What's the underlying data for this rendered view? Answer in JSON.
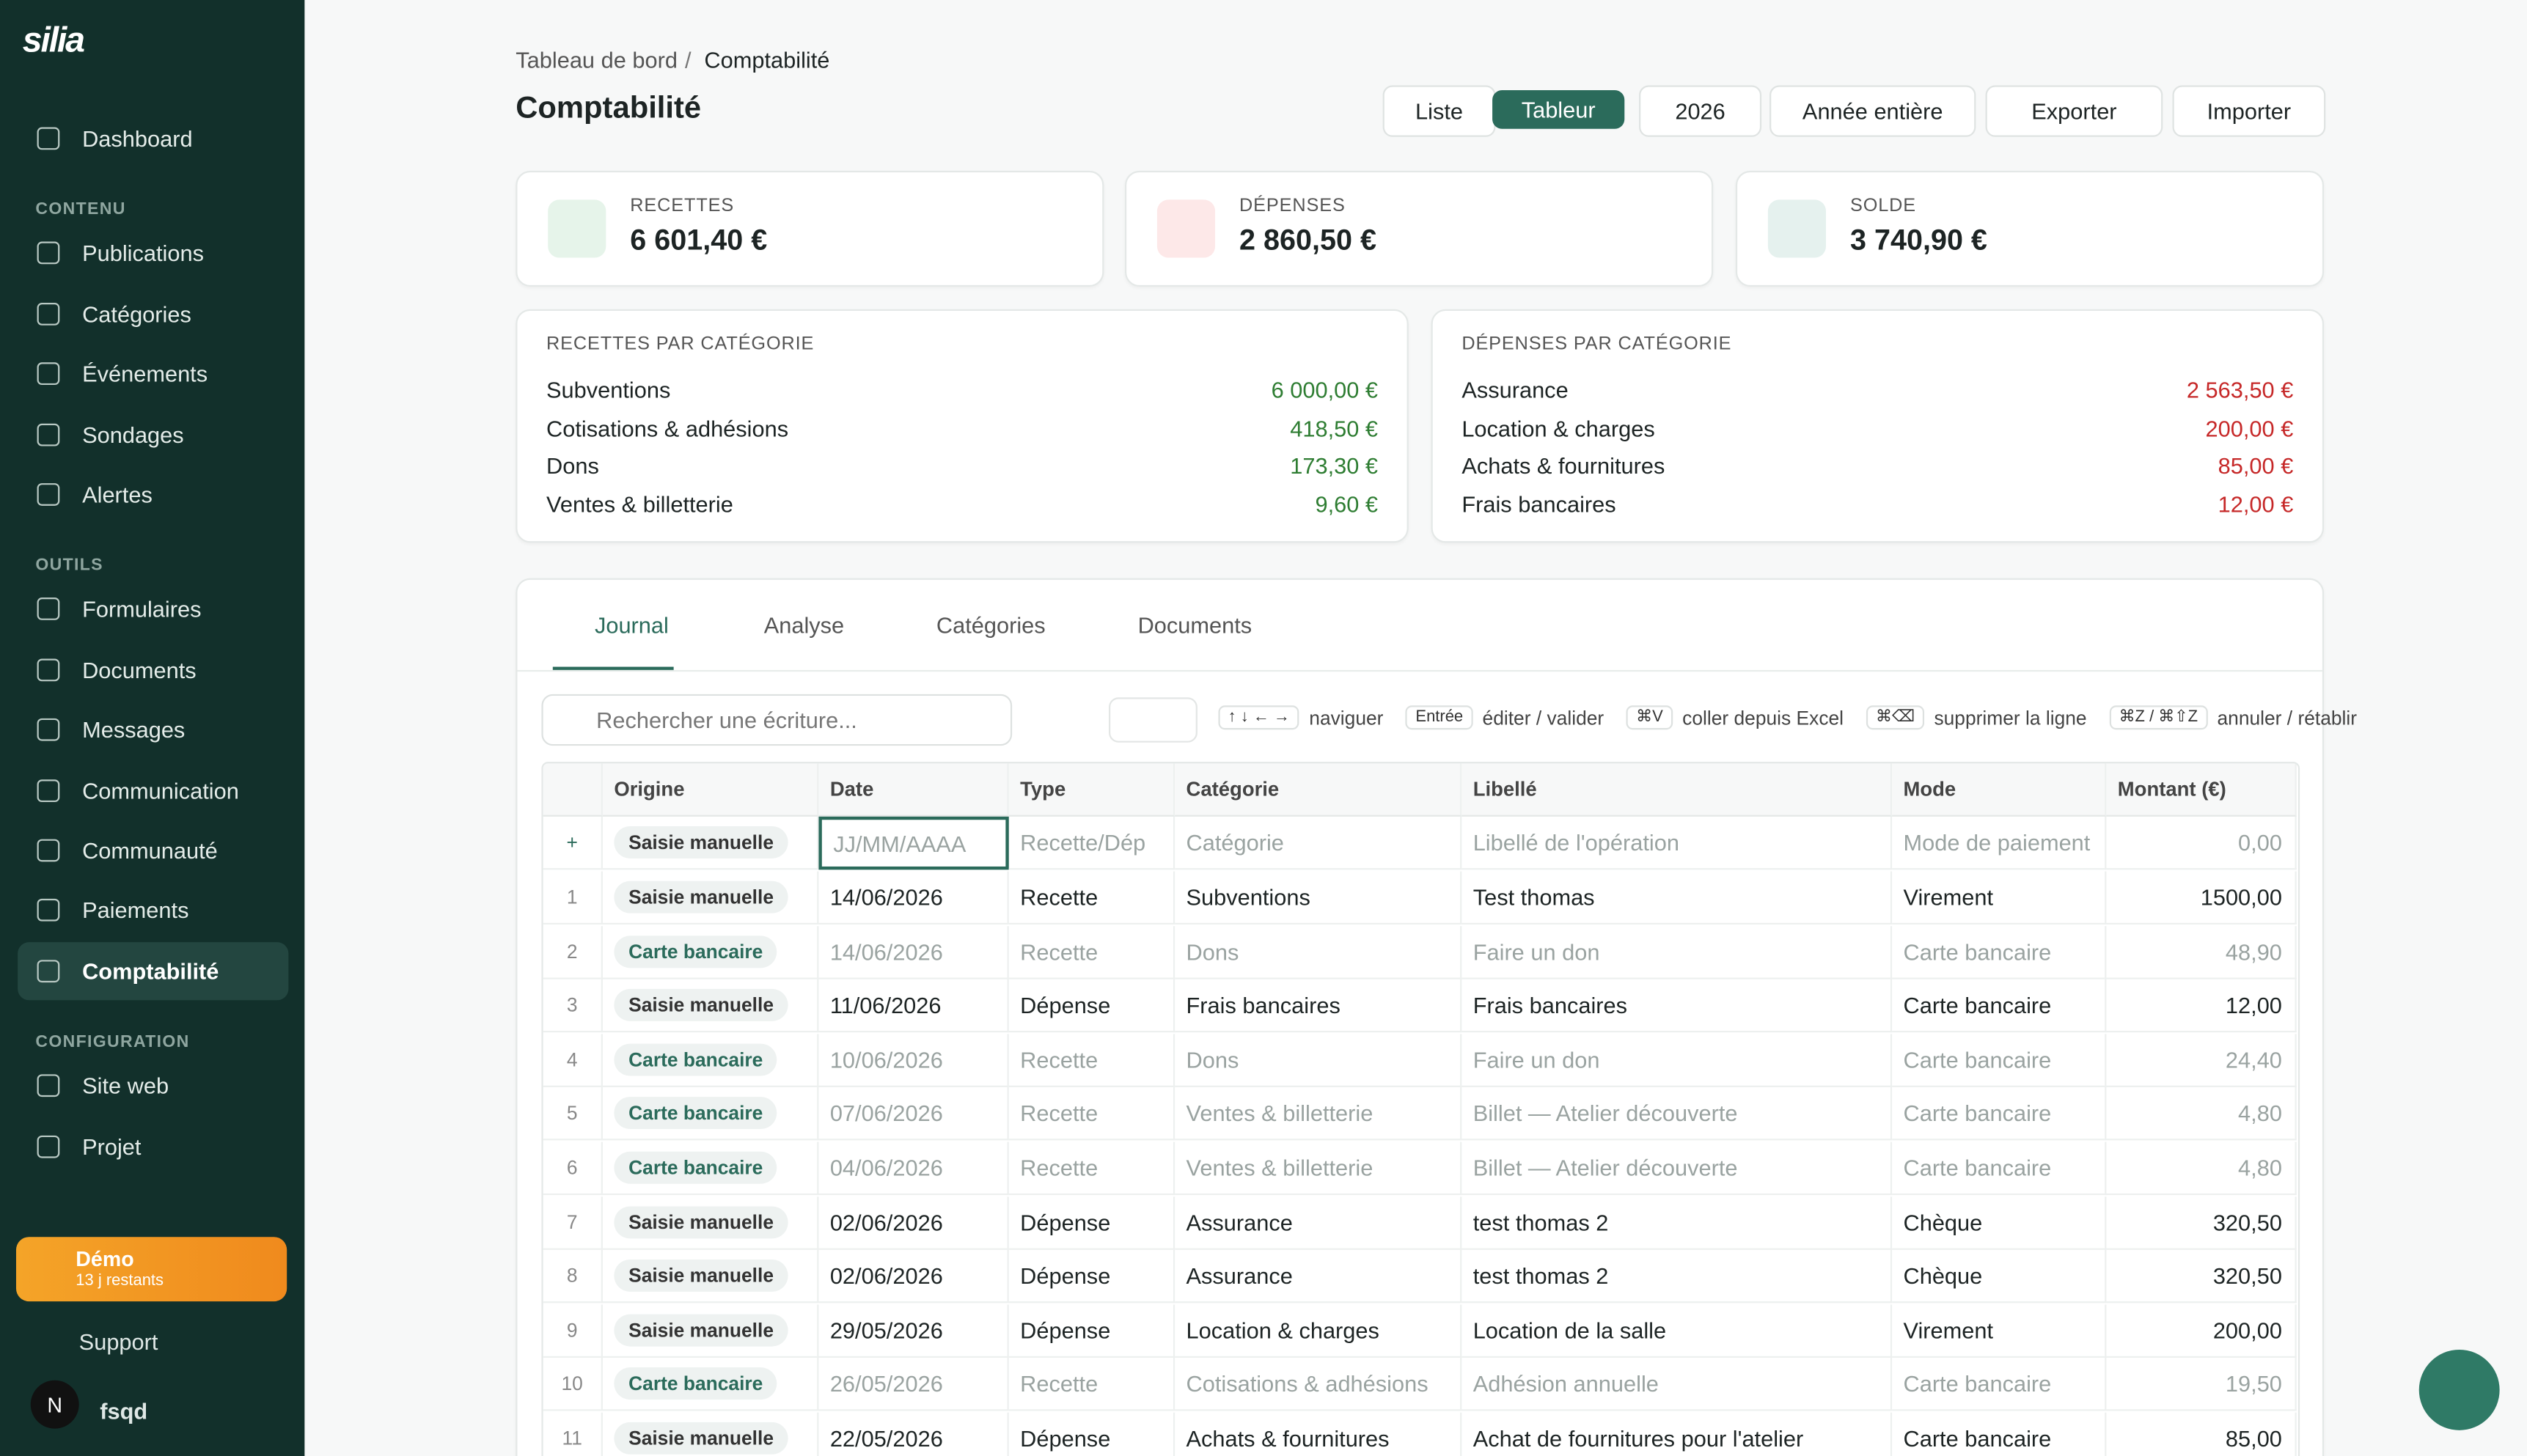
{
  "sidebar": {
    "brand": "silia",
    "top": [
      "Dashboard"
    ],
    "sections": [
      {
        "title": "CONTENU",
        "items": [
          "Publications",
          "Catégories",
          "Événements",
          "Sondages",
          "Alertes"
        ]
      },
      {
        "title": "OUTILS",
        "items": [
          "Formulaires",
          "Documents",
          "Messages",
          "Communication",
          "Communauté",
          "Paiements",
          "Comptabilité"
        ]
      },
      {
        "title": "CONFIGURATION",
        "items": [
          "Site web",
          "Projet"
        ]
      }
    ],
    "demo": {
      "title": "Démo",
      "subtitle": "13 j restants"
    },
    "support": "Support",
    "user": {
      "initial": "N",
      "name": "fsqd"
    }
  },
  "header": {
    "breadcrumb": [
      "Tableau de bord",
      "/",
      "Comptabilité"
    ],
    "title": "Comptabilité",
    "buttons": [
      "Liste",
      "Tableur",
      "2026",
      "Année entière",
      "Exporter",
      "Importer"
    ]
  },
  "stats": [
    {
      "label": "RECETTES",
      "value": "6 601,40 €"
    },
    {
      "label": "DÉPENSES",
      "value": "2 860,50 €"
    },
    {
      "label": "SOLDE",
      "value": "3 740,90 €"
    }
  ],
  "breakdowns": [
    {
      "title": "RECETTES PAR CATÉGORIE",
      "rows": [
        [
          "Subventions",
          "6 000,00 €"
        ],
        [
          "Cotisations & adhésions",
          "418,50 €"
        ],
        [
          "Dons",
          "173,30 €"
        ],
        [
          "Ventes & billetterie",
          "9,60 €"
        ]
      ]
    },
    {
      "title": "DÉPENSES PAR CATÉGORIE",
      "rows": [
        [
          "Assurance",
          "2 563,50 €"
        ],
        [
          "Location & charges",
          "200,00 €"
        ],
        [
          "Achats & fournitures",
          "85,00 €"
        ],
        [
          "Frais bancaires",
          "12,00 €"
        ]
      ]
    }
  ],
  "tabs": [
    "Journal",
    "Analyse",
    "Catégories",
    "Documents"
  ],
  "toolbar": {
    "search": "Rechercher une écriture...",
    "shortcuts": [
      [
        "↑ ↓ ← →",
        "naviguer"
      ],
      [
        "Entrée",
        "éditer / valider"
      ],
      [
        "⌘V",
        "coller depuis Excel"
      ],
      [
        "⌘⌫",
        "supprimer la ligne"
      ],
      [
        "⌘Z / ⌘⇧Z",
        "annuler / rétablir"
      ]
    ]
  },
  "table": {
    "columns": [
      "Origine",
      "Date",
      "Type",
      "Catégorie",
      "Libellé",
      "Mode",
      "Montant (€)"
    ],
    "new_row": [
      "+",
      "Saisie manuelle",
      "JJ/MM/AAAA",
      "Recette/Dép",
      "Catégorie",
      "Libellé de l'opération",
      "Mode de paiement",
      "0,00"
    ],
    "rows": [
      [
        "1",
        "Saisie manuelle",
        "14/06/2026",
        "Recette",
        "Subventions",
        "Test thomas",
        "Virement",
        "1500,00"
      ],
      [
        "2",
        "Carte bancaire",
        "14/06/2026",
        "Recette",
        "Dons",
        "Faire un don",
        "Carte bancaire",
        "48,90"
      ],
      [
        "3",
        "Saisie manuelle",
        "11/06/2026",
        "Dépense",
        "Frais bancaires",
        "Frais bancaires",
        "Carte bancaire",
        "12,00"
      ],
      [
        "4",
        "Carte bancaire",
        "10/06/2026",
        "Recette",
        "Dons",
        "Faire un don",
        "Carte bancaire",
        "24,40"
      ],
      [
        "5",
        "Carte bancaire",
        "07/06/2026",
        "Recette",
        "Ventes & billetterie",
        "Billet — Atelier découverte",
        "Carte bancaire",
        "4,80"
      ],
      [
        "6",
        "Carte bancaire",
        "04/06/2026",
        "Recette",
        "Ventes & billetterie",
        "Billet — Atelier découverte",
        "Carte bancaire",
        "4,80"
      ],
      [
        "7",
        "Saisie manuelle",
        "02/06/2026",
        "Dépense",
        "Assurance",
        "test thomas 2",
        "Chèque",
        "320,50"
      ],
      [
        "8",
        "Saisie manuelle",
        "02/06/2026",
        "Dépense",
        "Assurance",
        "test thomas 2",
        "Chèque",
        "320,50"
      ],
      [
        "9",
        "Saisie manuelle",
        "29/05/2026",
        "Dépense",
        "Location & charges",
        "Location de la salle",
        "Virement",
        "200,00"
      ],
      [
        "10",
        "Carte bancaire",
        "26/05/2026",
        "Recette",
        "Cotisations & adhésions",
        "Adhésion annuelle",
        "Carte bancaire",
        "19,50"
      ],
      [
        "11",
        "Saisie manuelle",
        "22/05/2026",
        "Dépense",
        "Achats & fournitures",
        "Achat de fournitures pour l'atelier",
        "Carte bancaire",
        "85,00"
      ]
    ]
  }
}
